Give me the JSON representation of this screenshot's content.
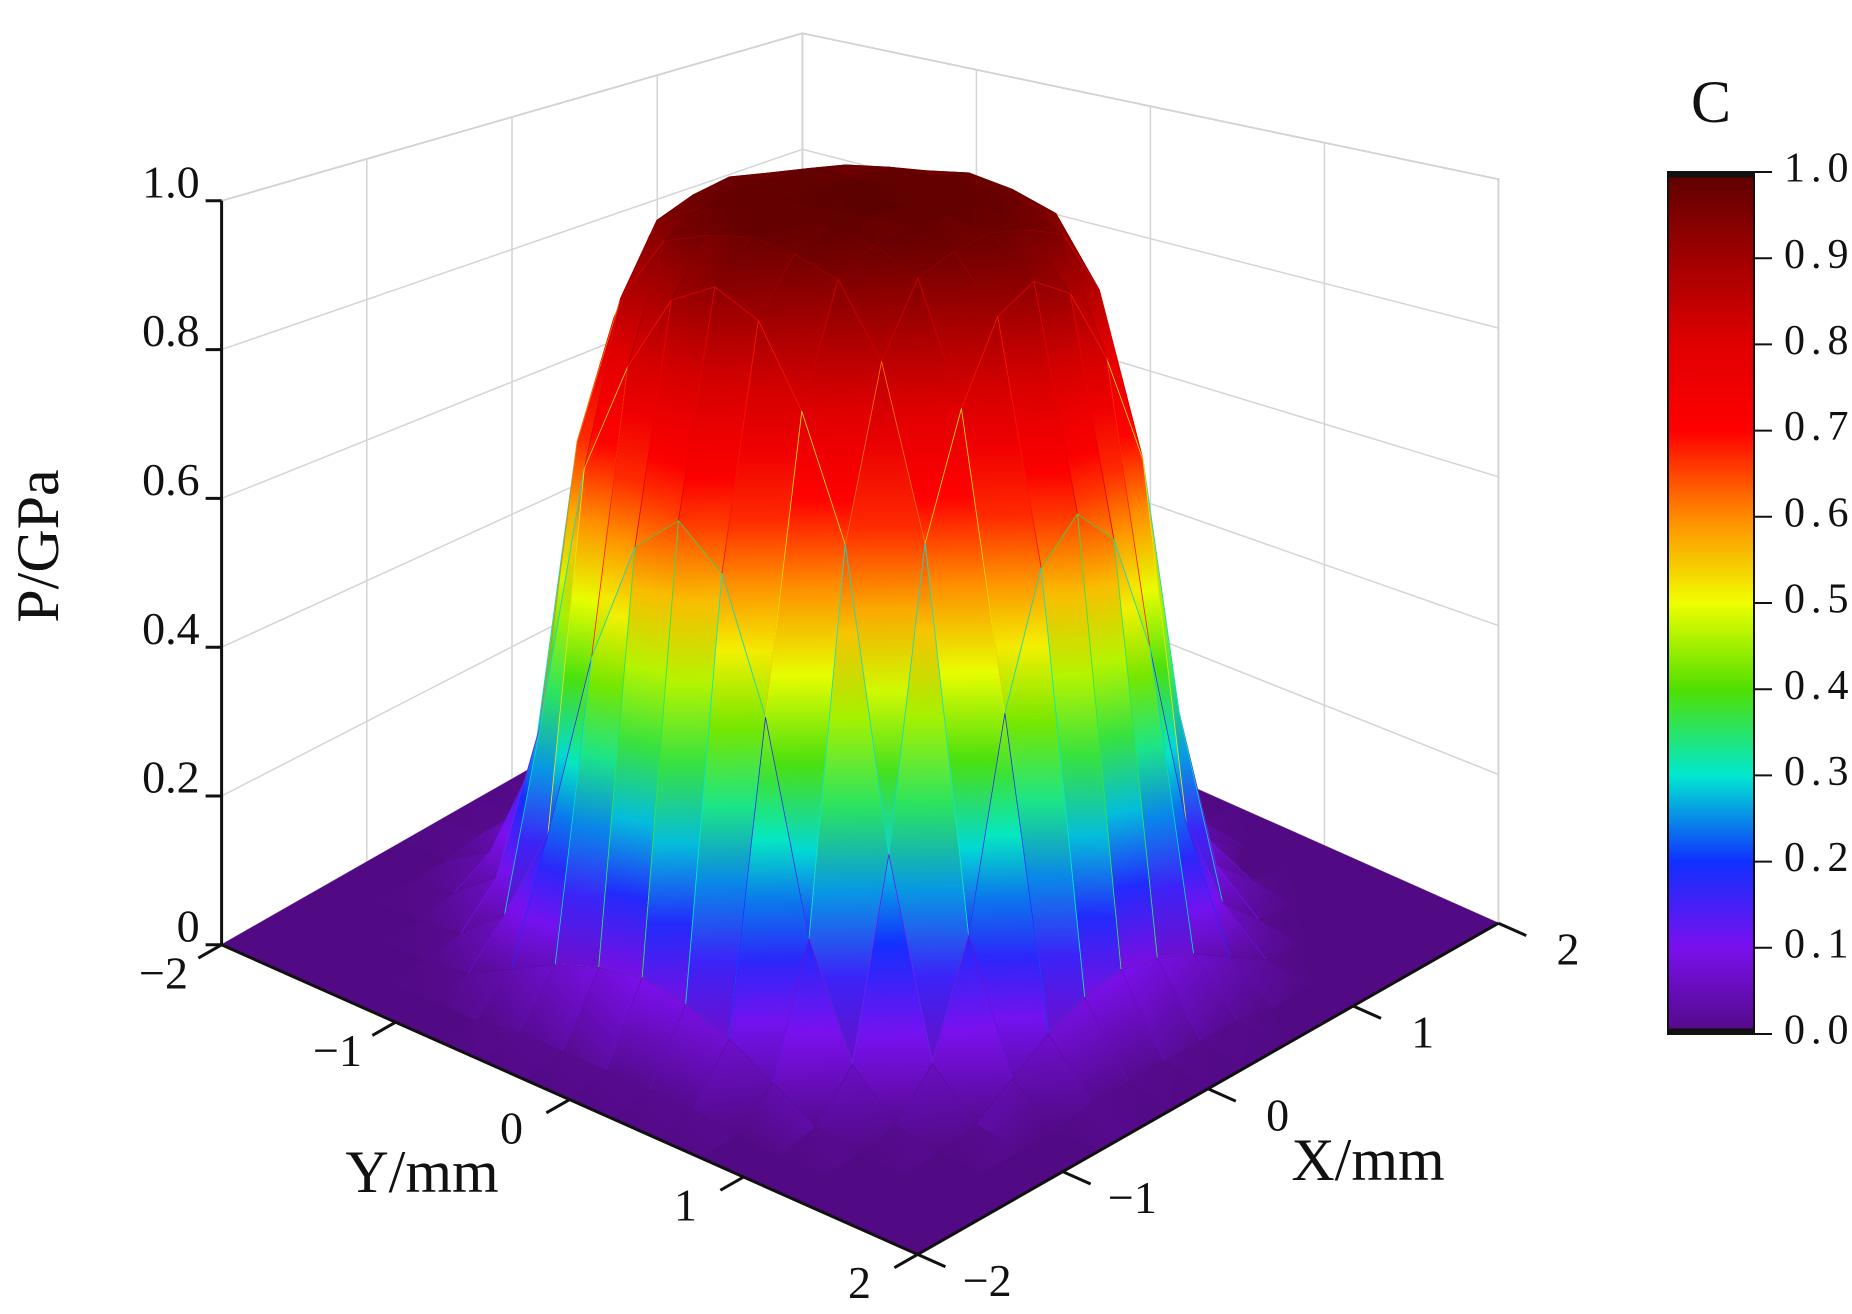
{
  "chart_data": {
    "type": "surface3d",
    "zlabel": "P/GPa",
    "xlabel": "X/mm",
    "ylabel": "Y/mm",
    "x": [
      -2,
      -1.75,
      -1.5,
      -1.25,
      -1,
      -0.75,
      -0.5,
      -0.25,
      0,
      0.25,
      0.5,
      0.75,
      1,
      1.25,
      1.5,
      1.75,
      2
    ],
    "y": [
      -2,
      -1.75,
      -1.5,
      -1.25,
      -1,
      -0.75,
      -0.5,
      -0.25,
      0,
      0.25,
      0.5,
      0.75,
      1,
      1.25,
      1.5,
      1.75,
      2
    ],
    "z": [
      [
        0,
        0,
        0,
        0,
        0,
        0,
        0,
        0,
        0,
        0,
        0,
        0,
        0,
        0,
        0,
        0,
        0
      ],
      [
        0,
        0,
        0,
        0,
        0,
        0,
        0.01,
        0.01,
        0.01,
        0.01,
        0.01,
        0,
        0,
        0,
        0,
        0,
        0
      ],
      [
        0,
        0,
        0,
        0,
        0.01,
        0.04,
        0.07,
        0.09,
        0.1,
        0.09,
        0.07,
        0.04,
        0.01,
        0,
        0,
        0,
        0
      ],
      [
        0,
        0,
        0,
        0.01,
        0.06,
        0.19,
        0.44,
        0.6,
        0.65,
        0.6,
        0.44,
        0.19,
        0.06,
        0.01,
        0,
        0,
        0
      ],
      [
        0,
        0,
        0.01,
        0.06,
        0.29,
        0.65,
        0.8,
        0.9,
        0.93,
        0.9,
        0.8,
        0.65,
        0.29,
        0.06,
        0.01,
        0,
        0
      ],
      [
        0,
        0,
        0.04,
        0.19,
        0.65,
        0.86,
        0.95,
        0.97,
        0.98,
        0.97,
        0.95,
        0.86,
        0.65,
        0.19,
        0.04,
        0,
        0
      ],
      [
        0,
        0.01,
        0.07,
        0.44,
        0.8,
        0.95,
        0.98,
        0.99,
        0.99,
        0.99,
        0.98,
        0.95,
        0.8,
        0.44,
        0.07,
        0.01,
        0
      ],
      [
        0,
        0.01,
        0.09,
        0.6,
        0.9,
        0.97,
        0.99,
        0.99,
        0.99,
        0.99,
        0.99,
        0.97,
        0.9,
        0.6,
        0.09,
        0.01,
        0
      ],
      [
        0,
        0.01,
        0.1,
        0.65,
        0.93,
        0.98,
        0.99,
        0.99,
        1.0,
        0.99,
        0.99,
        0.98,
        0.93,
        0.65,
        0.1,
        0.01,
        0
      ],
      [
        0,
        0.01,
        0.09,
        0.6,
        0.9,
        0.97,
        0.99,
        0.99,
        0.99,
        0.99,
        0.99,
        0.97,
        0.9,
        0.6,
        0.09,
        0.01,
        0
      ],
      [
        0,
        0.01,
        0.07,
        0.44,
        0.8,
        0.95,
        0.98,
        0.99,
        0.99,
        0.99,
        0.98,
        0.95,
        0.8,
        0.44,
        0.07,
        0.01,
        0
      ],
      [
        0,
        0,
        0.04,
        0.19,
        0.65,
        0.86,
        0.95,
        0.97,
        0.98,
        0.97,
        0.95,
        0.86,
        0.65,
        0.19,
        0.04,
        0,
        0
      ],
      [
        0,
        0,
        0.01,
        0.06,
        0.29,
        0.65,
        0.8,
        0.9,
        0.93,
        0.9,
        0.8,
        0.65,
        0.29,
        0.06,
        0.01,
        0,
        0
      ],
      [
        0,
        0,
        0,
        0.01,
        0.06,
        0.19,
        0.44,
        0.6,
        0.65,
        0.6,
        0.44,
        0.19,
        0.06,
        0.01,
        0,
        0,
        0
      ],
      [
        0,
        0,
        0,
        0,
        0.01,
        0.04,
        0.07,
        0.09,
        0.1,
        0.09,
        0.07,
        0.04,
        0.01,
        0,
        0,
        0,
        0
      ],
      [
        0,
        0,
        0,
        0,
        0,
        0,
        0.01,
        0.01,
        0.01,
        0.01,
        0.01,
        0,
        0,
        0,
        0,
        0,
        0
      ],
      [
        0,
        0,
        0,
        0,
        0,
        0,
        0,
        0,
        0,
        0,
        0,
        0,
        0,
        0,
        0,
        0,
        0
      ]
    ],
    "xlim": [
      -2,
      2
    ],
    "ylim": [
      -2,
      2
    ],
    "zlim": [
      0,
      1.0
    ],
    "xticks": [
      {
        "value": -2,
        "label": "−2"
      },
      {
        "value": -1,
        "label": "−1"
      },
      0,
      1,
      2
    ],
    "yticks": [
      {
        "value": -2,
        "label": "−2"
      },
      {
        "value": -1,
        "label": "−1"
      },
      0,
      1,
      2
    ],
    "zticks": [
      0,
      0.2,
      0.4,
      0.6,
      0.8,
      {
        "value": 1.0,
        "label": "1.0"
      }
    ],
    "grid": true,
    "colormap": [
      "#520a84",
      "#7a10ee",
      "#1030ff",
      "#00e8d0",
      "#50e000",
      "#f0ff00",
      "#ff8a00",
      "#ff0000",
      "#e00000",
      "#a00000",
      "#5c0000"
    ],
    "colorbar": {
      "title": "C",
      "ticks": [
        {
          "value": 0,
          "label": "0.0"
        },
        0.1,
        0.2,
        0.3,
        0.4,
        0.5,
        0.6,
        0.7,
        0.8,
        0.9,
        {
          "value": 1.0,
          "label": "1.0"
        }
      ]
    }
  }
}
